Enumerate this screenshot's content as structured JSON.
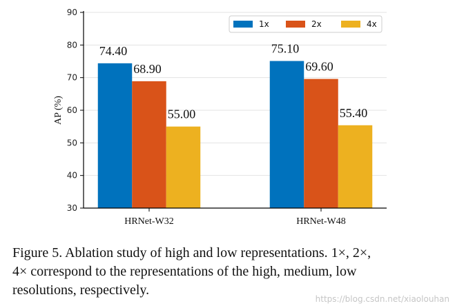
{
  "chart_data": {
    "type": "bar",
    "categories": [
      "HRNet-W32",
      "HRNet-W48"
    ],
    "series": [
      {
        "name": "1x",
        "values": [
          74.4,
          75.1
        ],
        "labels": [
          "74.40",
          "75.10"
        ],
        "color": "#0072bd"
      },
      {
        "name": "2x",
        "values": [
          68.9,
          69.6
        ],
        "labels": [
          "68.90",
          "69.60"
        ],
        "color": "#d95319"
      },
      {
        "name": "4x",
        "values": [
          55.0,
          55.4
        ],
        "labels": [
          "55.00",
          "55.40"
        ],
        "color": "#edb120"
      }
    ],
    "ylabel": "AP (%)",
    "ylim": [
      30,
      90
    ],
    "yticks": [
      30,
      40,
      50,
      60,
      70,
      80,
      90
    ],
    "grid": "horizontal",
    "legend_position": "top-right"
  },
  "caption": {
    "line1": "Figure 5. Ablation study of high and low representations. 1×, 2×,",
    "line2": "4× correspond to the representations of the high, medium, low",
    "line3": "resolutions, respectively."
  },
  "watermark": "https://blog.csdn.net/xiaolouhan"
}
